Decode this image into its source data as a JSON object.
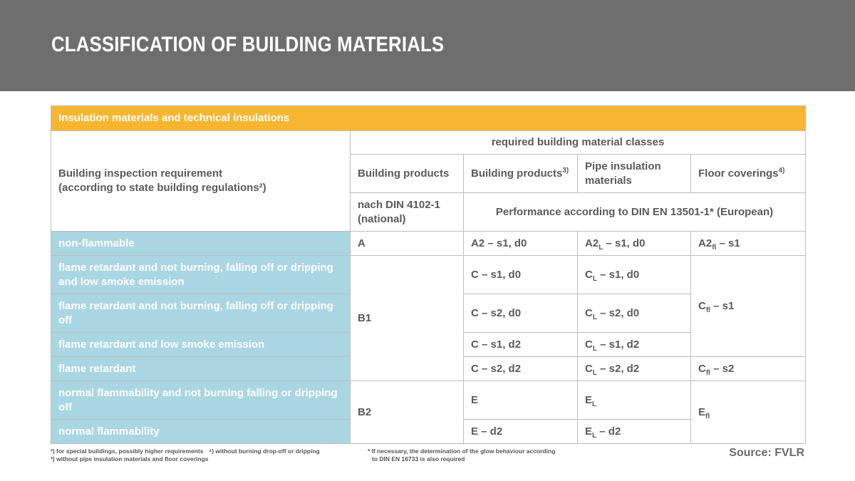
{
  "title": "CLASSIFICATION OF BUILDING MATERIALS",
  "banner": "Insulation materials and technical insulations",
  "header": {
    "requirement_line1": "Building inspection requirement",
    "requirement_line2": "(according to state building regulations²)",
    "required_classes": "required building material classes",
    "col_building_products": "Building products",
    "col_building_products_eu": "Building products",
    "col_building_products_eu_sup": "3)",
    "col_pipe": "Pipe insulation materials",
    "col_floor": "Floor coverings",
    "col_floor_sup": "4)",
    "national_line1": "nach DIN 4102-1",
    "national_line2": "(national)",
    "european": "Performance according to DIN EN 13501-1* (European)"
  },
  "rows": {
    "r1": {
      "label": "non-flammable",
      "national": "A",
      "eu": "A2 – s1, d0",
      "pipe_base": "A2",
      "pipe_sub": "L",
      "pipe_rest": " – s1, d0",
      "floor_base": "A2",
      "floor_sub": "fl",
      "floor_rest": " – s1"
    },
    "r2": {
      "label": "flame retardant and not burning, falling off or dripping and low smoke emission",
      "eu": "C – s1, d0",
      "pipe_base": "C",
      "pipe_sub": "L",
      "pipe_rest": " – s1, d0"
    },
    "r3": {
      "label": "flame retardant and not burning, falling off or dripping off",
      "eu": "C – s2, d0",
      "pipe_base": "C",
      "pipe_sub": "L",
      "pipe_rest": " – s2, d0"
    },
    "r4": {
      "label": "flame retardant and low smoke emission",
      "eu": "C – s1, d2",
      "pipe_base": "C",
      "pipe_sub": "L",
      "pipe_rest": " – s1, d2"
    },
    "r5": {
      "label": "flame retardant",
      "eu": "C – s2, d2",
      "pipe_base": "C",
      "pipe_sub": "L",
      "pipe_rest": " – s2, d2",
      "floor_base": "C",
      "floor_sub": "fl",
      "floor_rest": " – s2"
    },
    "r6": {
      "label": "normal flammability and not burning falling or dripping off",
      "eu": "E",
      "pipe_base": "E",
      "pipe_sub": "L",
      "pipe_rest": ""
    },
    "r7": {
      "label": "normal flammability",
      "eu": "E – d2",
      "pipe_base": "E",
      "pipe_sub": "L",
      "pipe_rest": " – d2"
    }
  },
  "merged": {
    "b1": "B1",
    "b2": "B2",
    "cfl_base": "C",
    "cfl_sub": "fl",
    "cfl_rest": " – s1",
    "efl_base": "E",
    "efl_sub": "fl"
  },
  "footnotes": {
    "fn2": "²) for special buildings, possibly higher requirements",
    "fn3": "³) without pipe insulation materials and floor coverings",
    "fn4": "⁴) without burning drop-off or dripping",
    "fn_star1": "* If necessary, the determination of the glow behaviour according",
    "fn_star2": "to DIN EN 16733 is also required"
  },
  "source": "Source: FVLR",
  "colors": {
    "header_bg": "#6e6e6e",
    "banner": "#f8b630",
    "label_cells": "#a9d6e2"
  }
}
